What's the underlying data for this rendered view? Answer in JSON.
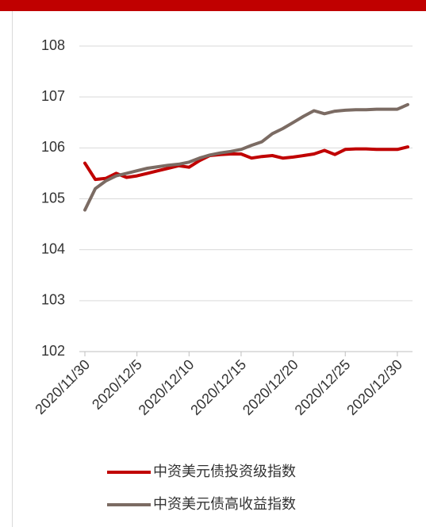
{
  "chart_data": {
    "type": "line",
    "categories": [
      "2020/11/30",
      null,
      null,
      null,
      null,
      "2020/12/5",
      null,
      null,
      null,
      null,
      "2020/12/10",
      null,
      null,
      null,
      null,
      "2020/12/15",
      null,
      null,
      null,
      null,
      "2020/12/20",
      null,
      null,
      null,
      null,
      "2020/12/25",
      null,
      null,
      null,
      null,
      "2020/12/30",
      null
    ],
    "series": [
      {
        "name": "中资美元债投资级指数",
        "color": "#c00000",
        "values": [
          105.7,
          105.38,
          105.4,
          105.5,
          105.42,
          105.45,
          105.5,
          105.55,
          105.6,
          105.65,
          105.62,
          105.75,
          105.85,
          105.87,
          105.88,
          105.88,
          105.8,
          105.83,
          105.85,
          105.8,
          105.82,
          105.85,
          105.88,
          105.95,
          105.87,
          105.97,
          105.98,
          105.98,
          105.97,
          105.97,
          105.97,
          106.02
        ]
      },
      {
        "name": "中资美元债高收益指数",
        "color": "#7b6b63",
        "values": [
          104.78,
          105.2,
          105.35,
          105.45,
          105.5,
          105.55,
          105.6,
          105.63,
          105.66,
          105.68,
          105.72,
          105.8,
          105.86,
          105.9,
          105.93,
          105.97,
          106.05,
          106.12,
          106.28,
          106.38,
          106.5,
          106.62,
          106.73,
          106.67,
          106.72,
          106.74,
          106.75,
          106.75,
          106.76,
          106.76,
          106.76,
          106.85
        ]
      }
    ],
    "ylim": [
      102,
      108
    ],
    "yticks": [
      102,
      103,
      104,
      105,
      106,
      107,
      108
    ],
    "grid": true
  }
}
